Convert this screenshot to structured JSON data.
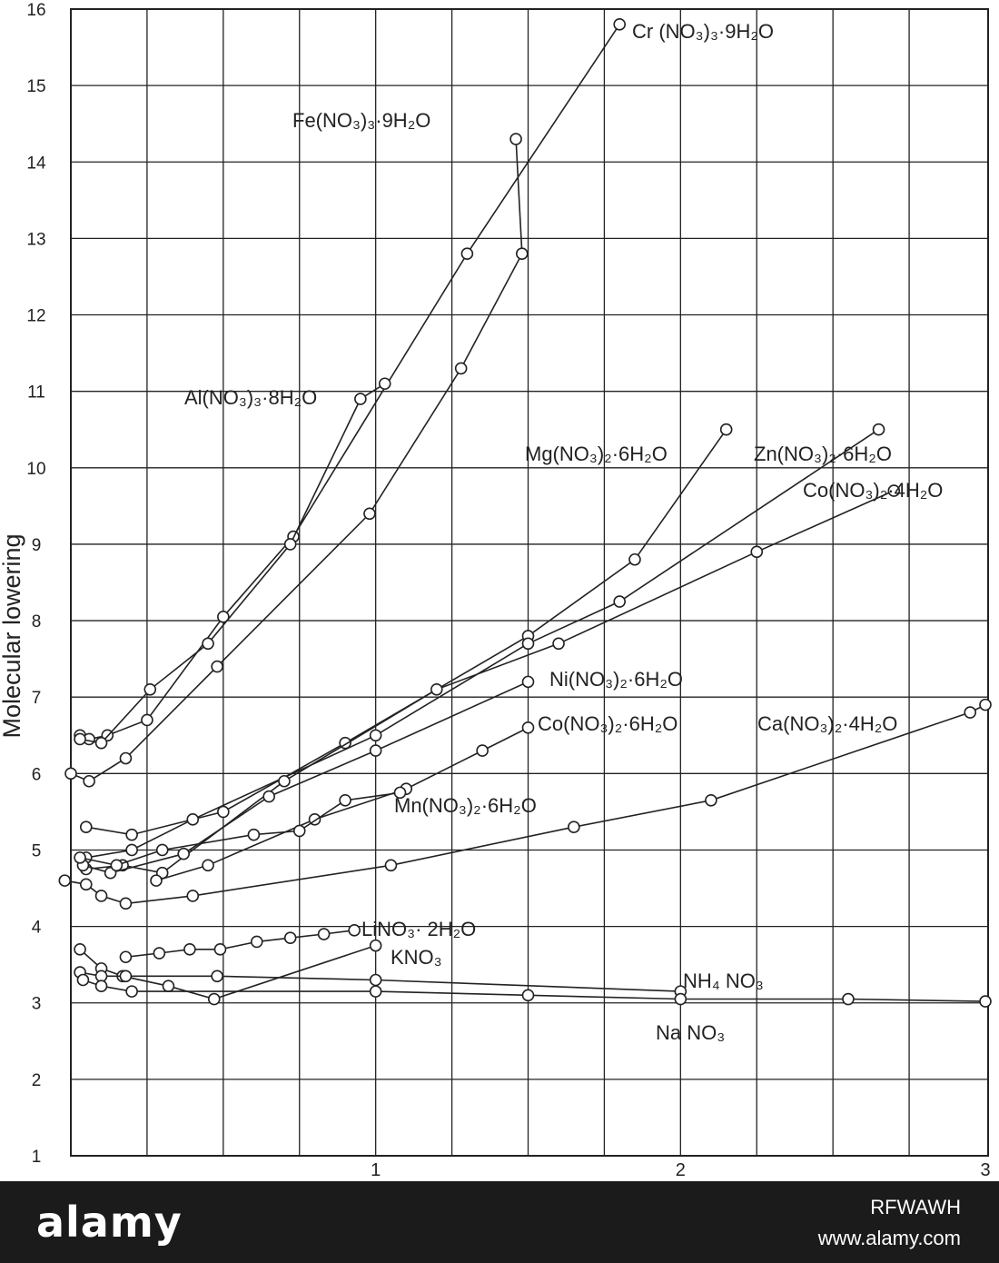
{
  "chart_data": {
    "type": "line",
    "title": "",
    "xlabel": "",
    "ylabel": "Molecular lowering",
    "xlim": [
      0,
      3
    ],
    "ylim": [
      1,
      16
    ],
    "x_ticks": [
      1,
      2,
      3
    ],
    "y_ticks": [
      1,
      2,
      3,
      4,
      5,
      6,
      7,
      8,
      9,
      10,
      11,
      12,
      13,
      14,
      15,
      16
    ],
    "grid": true,
    "series": [
      {
        "name": "Cr(NO3)3·9H2O",
        "label": "Cr (NO₃)₃·9H₂O",
        "points": [
          [
            0.03,
            6.5
          ],
          [
            0.06,
            6.45
          ],
          [
            0.12,
            6.5
          ],
          [
            0.25,
            6.7
          ],
          [
            0.5,
            8.05
          ],
          [
            0.73,
            9.1
          ],
          [
            1.3,
            12.8
          ],
          [
            1.8,
            15.8
          ]
        ]
      },
      {
        "name": "Fe(NO3)3·9H2O",
        "label": "Fe(NO₃)₃·9H₂O",
        "points": [
          [
            0.0,
            6.0
          ],
          [
            0.06,
            5.9
          ],
          [
            0.18,
            6.2
          ],
          [
            0.48,
            7.4
          ],
          [
            0.98,
            9.4
          ],
          [
            1.28,
            11.3
          ],
          [
            1.48,
            12.8
          ],
          [
            1.46,
            14.3
          ]
        ]
      },
      {
        "name": "Al(NO3)3·8H2O",
        "label": "Al(NO₃)₃·8H₂O",
        "points": [
          [
            0.03,
            6.45
          ],
          [
            0.1,
            6.4
          ],
          [
            0.26,
            7.1
          ],
          [
            0.45,
            7.7
          ],
          [
            0.72,
            9.0
          ],
          [
            0.95,
            10.9
          ],
          [
            1.03,
            11.1
          ]
        ]
      },
      {
        "name": "Mg(NO3)2·6H2O",
        "label": "Mg(NO₃)₂·6H₂O",
        "points": [
          [
            0.05,
            5.3
          ],
          [
            0.2,
            5.2
          ],
          [
            0.5,
            5.5
          ],
          [
            0.9,
            6.4
          ],
          [
            1.5,
            7.8
          ],
          [
            1.85,
            8.8
          ],
          [
            2.15,
            10.5
          ]
        ]
      },
      {
        "name": "Zn(NO3)2·6H2O",
        "label": "Zn(NO₃)₂·6H₂O",
        "points": [
          [
            0.05,
            4.9
          ],
          [
            0.2,
            5.0
          ],
          [
            0.4,
            5.4
          ],
          [
            1.0,
            6.5
          ],
          [
            1.5,
            7.7
          ],
          [
            1.8,
            8.25
          ],
          [
            2.65,
            10.5
          ]
        ]
      },
      {
        "name": "Co(NO3)2·4H2O",
        "label": "Co(NO₃)₂·4H₂O",
        "points": [
          [
            0.05,
            4.75
          ],
          [
            0.17,
            4.8
          ],
          [
            0.3,
            4.7
          ],
          [
            0.7,
            5.9
          ],
          [
            1.2,
            7.1
          ],
          [
            1.6,
            7.7
          ],
          [
            2.25,
            8.9
          ],
          [
            2.7,
            9.7
          ]
        ]
      },
      {
        "name": "Ni(NO3)2·6H2O",
        "label": "Ni(NO₃)₂·6H₂O",
        "points": [
          [
            0.04,
            4.8
          ],
          [
            0.13,
            4.7
          ],
          [
            0.37,
            4.95
          ],
          [
            0.65,
            5.7
          ],
          [
            1.0,
            6.3
          ],
          [
            1.5,
            7.2
          ]
        ]
      },
      {
        "name": "Co(NO3)2·6H2O",
        "label": "Co(NO₃)₂·6H₂O",
        "points": [
          [
            0.28,
            4.6
          ],
          [
            0.45,
            4.8
          ],
          [
            0.8,
            5.4
          ],
          [
            1.1,
            5.8
          ],
          [
            1.35,
            6.3
          ],
          [
            1.5,
            6.6
          ]
        ]
      },
      {
        "name": "Mn(NO3)2·6H2O",
        "label": "Mn(NO₃)₂·6H₂O",
        "points": [
          [
            0.03,
            4.9
          ],
          [
            0.15,
            4.8
          ],
          [
            0.3,
            5.0
          ],
          [
            0.6,
            5.2
          ],
          [
            0.75,
            5.25
          ],
          [
            0.9,
            5.65
          ],
          [
            1.08,
            5.75
          ]
        ]
      },
      {
        "name": "Ca(NO3)2·4H2O",
        "label": "Ca(NO₃)₂·4H₂O",
        "points": [
          [
            -0.02,
            4.6
          ],
          [
            0.05,
            4.55
          ],
          [
            0.1,
            4.4
          ],
          [
            0.18,
            4.3
          ],
          [
            0.4,
            4.4
          ],
          [
            1.05,
            4.8
          ],
          [
            1.65,
            5.3
          ],
          [
            2.1,
            5.65
          ],
          [
            2.95,
            6.8
          ],
          [
            3.0,
            6.9
          ]
        ]
      },
      {
        "name": "LiNO3·2H2O",
        "label": "LiNO₃· 2H₂O",
        "points": [
          [
            0.18,
            3.6
          ],
          [
            0.29,
            3.65
          ],
          [
            0.39,
            3.7
          ],
          [
            0.49,
            3.7
          ],
          [
            0.61,
            3.8
          ],
          [
            0.72,
            3.85
          ],
          [
            0.83,
            3.9
          ],
          [
            0.93,
            3.95
          ]
        ]
      },
      {
        "name": "KNO3",
        "label": "KNO₃",
        "points": [
          [
            0.03,
            3.7
          ],
          [
            0.1,
            3.45
          ],
          [
            0.17,
            3.35
          ],
          [
            0.32,
            3.22
          ],
          [
            0.47,
            3.05
          ],
          [
            1.0,
            3.75
          ]
        ]
      },
      {
        "name": "NH4NO3",
        "label": "NH₄ NO₃",
        "points": [
          [
            0.03,
            3.4
          ],
          [
            0.1,
            3.35
          ],
          [
            0.18,
            3.35
          ],
          [
            0.48,
            3.35
          ],
          [
            1.0,
            3.3
          ],
          [
            2.0,
            3.15
          ]
        ]
      },
      {
        "name": "NaNO3",
        "label": "Na NO₃",
        "points": [
          [
            0.04,
            3.3
          ],
          [
            0.1,
            3.22
          ],
          [
            0.2,
            3.15
          ],
          [
            1.0,
            3.15
          ],
          [
            1.5,
            3.1
          ],
          [
            2.0,
            3.05
          ],
          [
            2.55,
            3.05
          ],
          [
            3.0,
            3.02
          ]
        ]
      }
    ]
  },
  "watermark": {
    "brand": "alamy",
    "image_id": "RFWAWH",
    "url": "www.alamy.com"
  }
}
